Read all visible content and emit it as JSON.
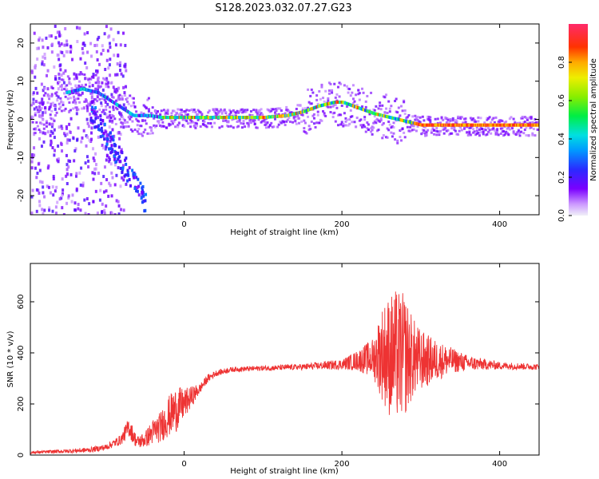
{
  "title": "S128.2023.032.07.27.G23",
  "chart_data": [
    {
      "type": "heatmap",
      "xlabel": "Height of straight line (km)",
      "ylabel": "Frequency (Hz)",
      "xlim": [
        -195,
        450
      ],
      "ylim": [
        -25,
        25
      ],
      "xticks": [
        0,
        200,
        400
      ],
      "yticks": [
        -20,
        -10,
        0,
        10,
        20
      ],
      "colorbar": {
        "label": "Normalized spectral amplitude",
        "range": [
          0,
          1
        ],
        "ticks": [
          0.0,
          0.2,
          0.4,
          0.6,
          0.8
        ]
      },
      "ridge": {
        "x": [
          -190,
          -170,
          -150,
          -130,
          -110,
          -95,
          -80,
          -65,
          -55,
          -45,
          -30,
          0,
          50,
          100,
          130,
          150,
          170,
          190,
          200,
          220,
          240,
          260,
          280,
          300,
          350,
          400,
          450
        ],
        "y": [
          0,
          4,
          7,
          8,
          7,
          5,
          3,
          1,
          1,
          1,
          0.5,
          0.5,
          0.5,
          0.5,
          1,
          2,
          3.5,
          4.5,
          4.5,
          3,
          1.5,
          0.5,
          -0.5,
          -1.5,
          -1.5,
          -1.5,
          -1.5
        ]
      }
    },
    {
      "type": "line",
      "xlabel": "Height of straight line (km)",
      "ylabel": "SNR (10 * v/v)",
      "xlim": [
        -195,
        450
      ],
      "ylim": [
        0,
        750
      ],
      "xticks": [
        0,
        200,
        400
      ],
      "yticks": [
        0,
        200,
        400,
        600
      ],
      "color": "#ee3333",
      "envelope": {
        "x": [
          -195,
          -150,
          -120,
          -100,
          -80,
          -70,
          -60,
          -50,
          -40,
          -30,
          -20,
          -10,
          0,
          10,
          20,
          30,
          40,
          60,
          100,
          150,
          200,
          220,
          240,
          250,
          260,
          270,
          280,
          290,
          300,
          320,
          340,
          360,
          400,
          450
        ],
        "mean": [
          10,
          15,
          20,
          30,
          60,
          110,
          50,
          60,
          90,
          110,
          150,
          180,
          200,
          230,
          260,
          300,
          320,
          335,
          340,
          345,
          355,
          370,
          380,
          400,
          390,
          390,
          390,
          380,
          370,
          370,
          370,
          360,
          350,
          345
        ],
        "amp": [
          5,
          8,
          10,
          12,
          20,
          40,
          25,
          30,
          50,
          60,
          80,
          90,
          60,
          40,
          20,
          15,
          12,
          10,
          10,
          12,
          20,
          40,
          80,
          180,
          240,
          260,
          240,
          160,
          120,
          80,
          50,
          30,
          15,
          12
        ]
      }
    }
  ]
}
